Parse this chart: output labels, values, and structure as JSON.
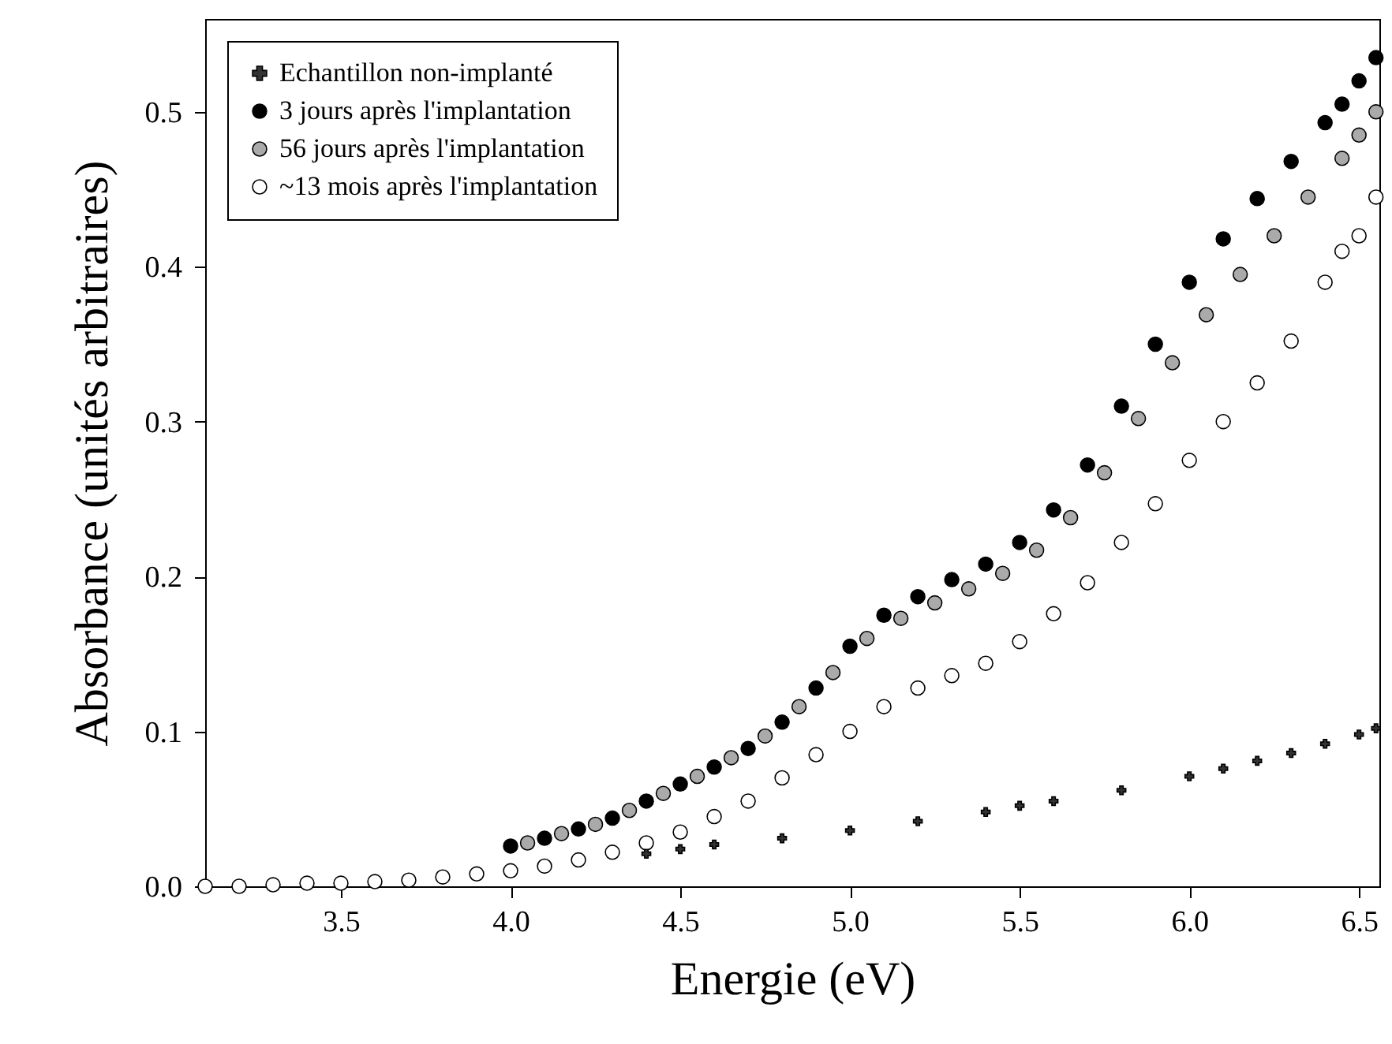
{
  "chart_data": {
    "type": "scatter",
    "xlabel": "Energie (eV)",
    "ylabel": "Absorbance (unités arbitraires)",
    "xlim": [
      3.1,
      6.56
    ],
    "ylim": [
      0,
      0.56
    ],
    "xticks": [
      3.5,
      {
        "value": 4,
        "label": "4.0"
      },
      4.5,
      {
        "value": 5,
        "label": "5.0"
      },
      5.5,
      {
        "value": 6,
        "label": "6.0"
      },
      6.5
    ],
    "yticks": [
      {
        "value": 0,
        "label": "0.0"
      },
      0.1,
      0.2,
      0.3,
      0.4,
      0.5
    ],
    "grid": false,
    "legend": "top left",
    "series": [
      {
        "name": "Echantillon non-implanté",
        "color": "#333333",
        "marker": "cross",
        "x": [
          4.4,
          4.5,
          4.6,
          4.8,
          5.0,
          5.2,
          5.4,
          5.5,
          5.6,
          5.8,
          6.0,
          6.1,
          6.2,
          6.3,
          6.4,
          6.5,
          6.55
        ],
        "values": [
          0.021,
          0.024,
          0.027,
          0.031,
          0.036,
          0.042,
          0.048,
          0.052,
          0.055,
          0.062,
          0.071,
          0.076,
          0.081,
          0.086,
          0.092,
          0.098,
          0.102
        ]
      },
      {
        "name": "3 jours après l'implantation",
        "color": "#000000",
        "marker": "circle",
        "x": [
          4.0,
          4.1,
          4.2,
          4.3,
          4.4,
          4.5,
          4.6,
          4.7,
          4.8,
          4.9,
          5.0,
          5.1,
          5.2,
          5.3,
          5.4,
          5.5,
          5.6,
          5.7,
          5.8,
          5.9,
          6.0,
          6.1,
          6.2,
          6.3,
          6.4,
          6.45,
          6.5,
          6.55
        ],
        "values": [
          0.026,
          0.031,
          0.037,
          0.044,
          0.055,
          0.066,
          0.077,
          0.089,
          0.106,
          0.128,
          0.155,
          0.175,
          0.187,
          0.198,
          0.208,
          0.222,
          0.243,
          0.272,
          0.31,
          0.35,
          0.39,
          0.418,
          0.444,
          0.468,
          0.493,
          0.505,
          0.52,
          0.535
        ]
      },
      {
        "name": "56 jours après l'implantation",
        "color": "#aaaaaa",
        "marker": "circle",
        "x": [
          4.05,
          4.15,
          4.25,
          4.35,
          4.45,
          4.55,
          4.65,
          4.75,
          4.85,
          4.95,
          5.05,
          5.15,
          5.25,
          5.35,
          5.45,
          5.55,
          5.65,
          5.75,
          5.85,
          5.95,
          6.05,
          6.15,
          6.25,
          6.35,
          6.45,
          6.5,
          6.55
        ],
        "values": [
          0.028,
          0.034,
          0.04,
          0.049,
          0.06,
          0.071,
          0.083,
          0.097,
          0.116,
          0.138,
          0.16,
          0.173,
          0.183,
          0.192,
          0.202,
          0.217,
          0.238,
          0.267,
          0.302,
          0.338,
          0.369,
          0.395,
          0.42,
          0.445,
          0.47,
          0.485,
          0.5
        ]
      },
      {
        "name": "~13 mois après l'implantation",
        "color": "#ffffff",
        "marker": "circle",
        "x": [
          3.1,
          3.2,
          3.3,
          3.4,
          3.5,
          3.6,
          3.7,
          3.8,
          3.9,
          4.0,
          4.1,
          4.2,
          4.3,
          4.4,
          4.5,
          4.6,
          4.7,
          4.8,
          4.9,
          5.0,
          5.1,
          5.2,
          5.3,
          5.4,
          5.5,
          5.6,
          5.7,
          5.8,
          5.9,
          6.0,
          6.1,
          6.2,
          6.3,
          6.4,
          6.45,
          6.5,
          6.55
        ],
        "values": [
          0,
          0,
          0.001,
          0.002,
          0.002,
          0.003,
          0.004,
          0.006,
          0.008,
          0.01,
          0.013,
          0.017,
          0.022,
          0.028,
          0.035,
          0.045,
          0.055,
          0.07,
          0.085,
          0.1,
          0.116,
          0.128,
          0.136,
          0.144,
          0.158,
          0.176,
          0.196,
          0.222,
          0.247,
          0.275,
          0.3,
          0.325,
          0.352,
          0.39,
          0.41,
          0.42,
          0.445
        ]
      }
    ]
  }
}
